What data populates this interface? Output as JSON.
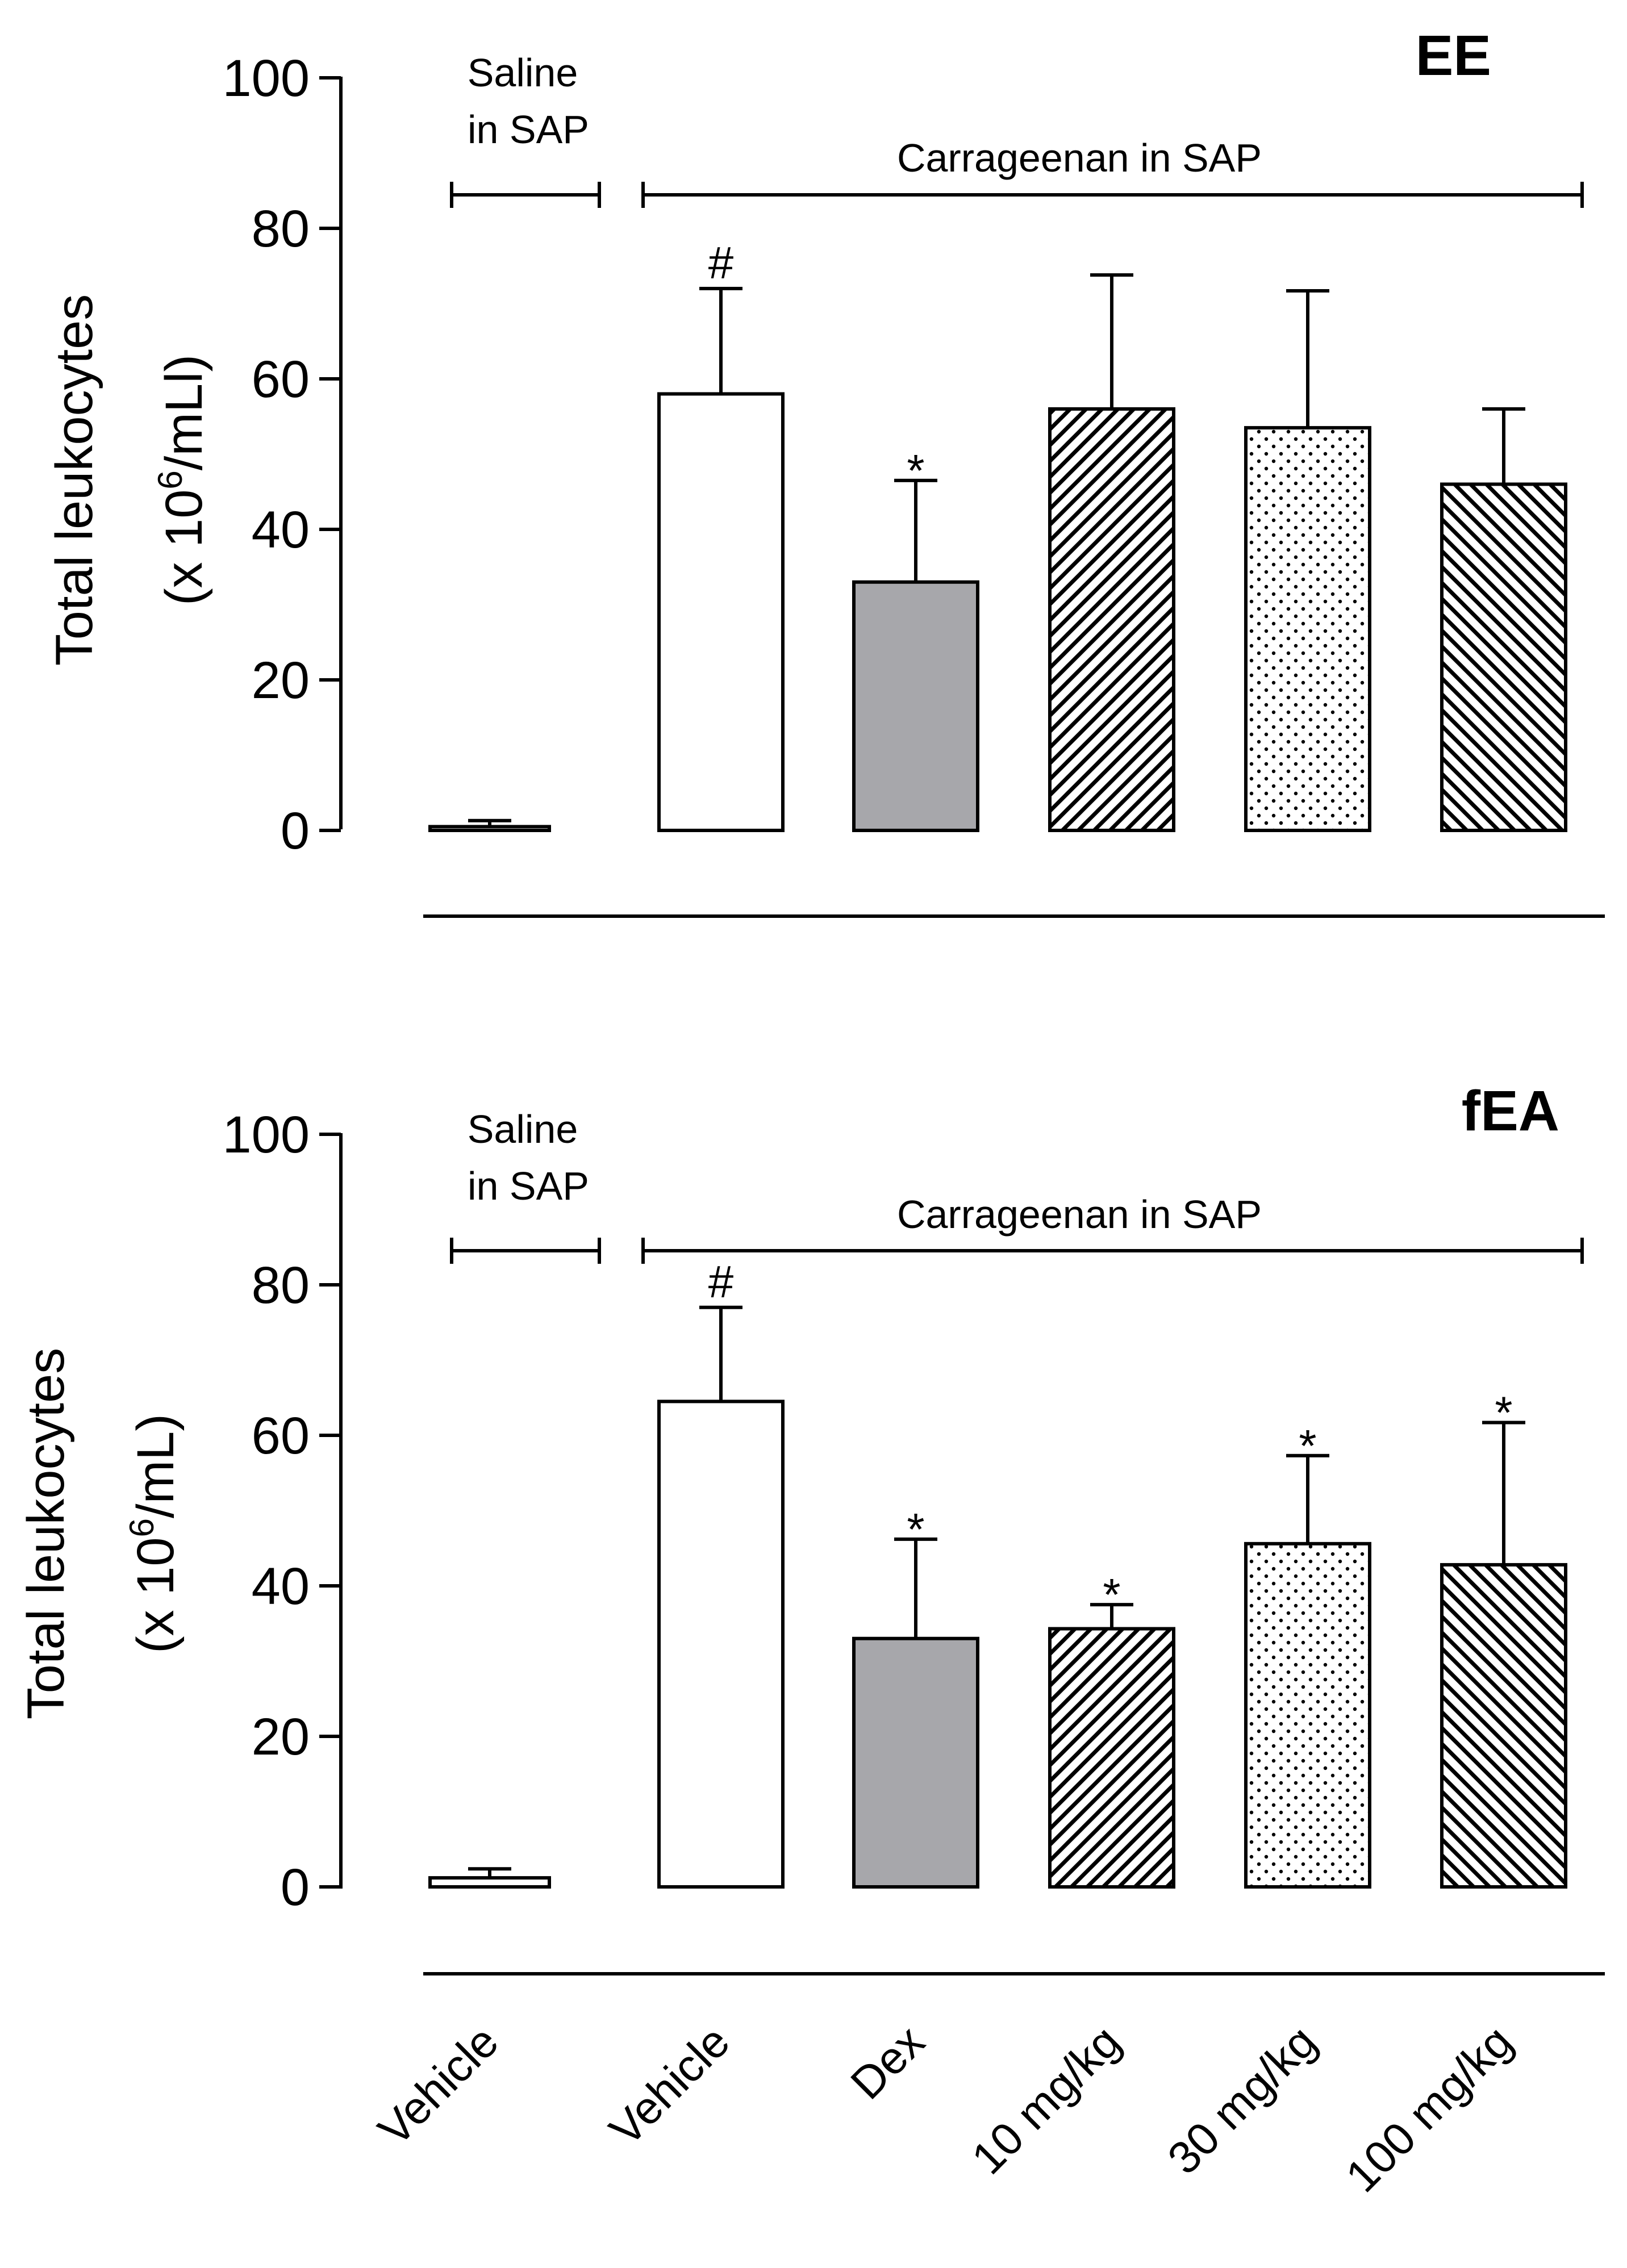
{
  "chart_data": [
    {
      "type": "bar",
      "panel_label": "EE",
      "ylabel_line1": "Total leukocytes",
      "ylabel_pre": "(x 10",
      "ylabel_sup": "6",
      "ylabel_post": "/mLl)",
      "ylim": [
        0,
        100
      ],
      "yticks": [
        "0",
        "20",
        "40",
        "60",
        "80",
        "100"
      ],
      "group_label_saline_1": "Saline",
      "group_label_saline_2": "in SAP",
      "group_label_carrageenan": "Carrageenan in SAP",
      "categories": [
        "Vehicle",
        "Vehicle",
        "Dex",
        "10 mg/kg",
        "30 mg/kg",
        "100 mg/kg"
      ],
      "values": [
        0.5,
        58,
        33,
        56,
        53.5,
        46
      ],
      "errors": [
        0.8,
        14,
        13.5,
        17.8,
        18.2,
        10
      ],
      "fills": [
        "white",
        "white",
        "gray",
        "hatch-fwd",
        "dots",
        "hatch-back"
      ],
      "significance": [
        "",
        "#",
        "*",
        "",
        "",
        ""
      ]
    },
    {
      "type": "bar",
      "panel_label": "fEA",
      "ylabel_line1": "Total leukocytes",
      "ylabel_pre": "(x 10",
      "ylabel_sup": "6",
      "ylabel_post": "/mL)",
      "ylim": [
        0,
        100
      ],
      "yticks": [
        "0",
        "20",
        "40",
        "60",
        "80",
        "100"
      ],
      "group_label_saline_1": "Saline",
      "group_label_saline_2": "in SAP",
      "group_label_carrageenan": "Carrageenan in SAP",
      "categories": [
        "Vehicle",
        "Vehicle",
        "Dex",
        "10 mg/kg",
        "30 mg/kg",
        "100 mg/kg"
      ],
      "values": [
        1.2,
        64.5,
        33,
        34.3,
        45.6,
        42.8
      ],
      "errors": [
        1.2,
        12.5,
        13.2,
        3.2,
        11.7,
        18.9
      ],
      "fills": [
        "white",
        "white",
        "gray",
        "hatch-fwd",
        "dots",
        "hatch-back"
      ],
      "significance": [
        "",
        "#",
        "*",
        "*",
        "*",
        "*"
      ]
    }
  ],
  "x_categories": [
    "Vehicle",
    "Vehicle",
    "Dex",
    "10 mg/kg",
    "30 mg/kg",
    "100 mg/kg"
  ],
  "colors": {
    "bar_gray": "#a7a7ab",
    "ink": "#000000",
    "background": "#ffffff"
  }
}
